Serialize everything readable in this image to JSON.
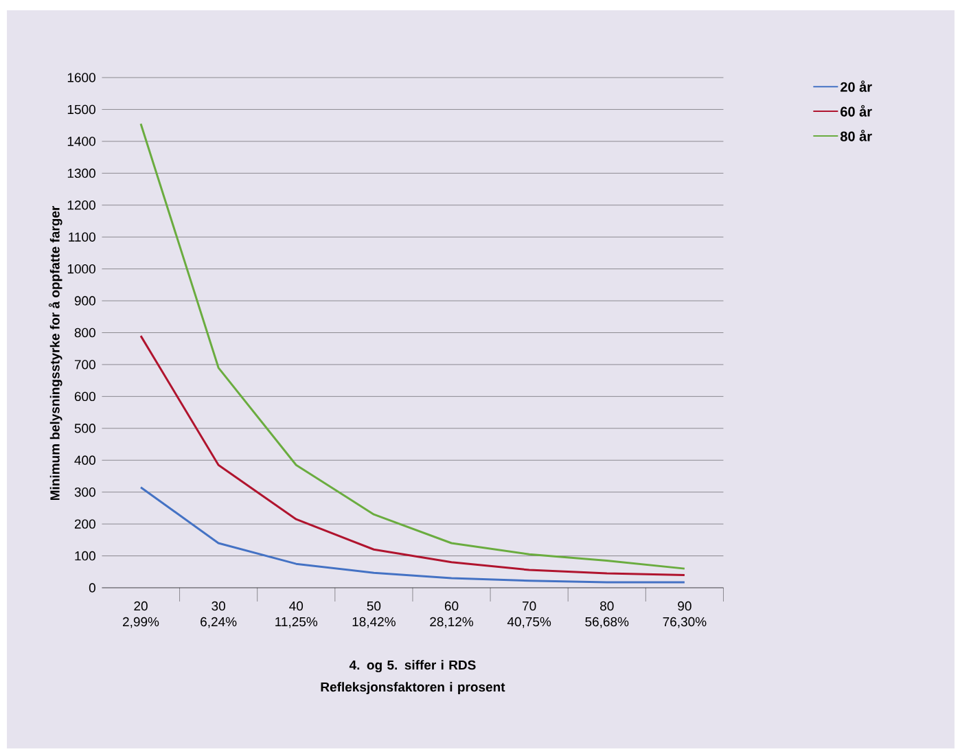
{
  "chart_data": {
    "type": "line",
    "categories": [
      "20 2,99%",
      "30 6,24%",
      "40 11,25%",
      "50 18,42%",
      "60 28,12%",
      "70 40,75%",
      "80 56,68%",
      "90 76,30%"
    ],
    "series": [
      {
        "name": "20 år",
        "color": "#4472c4",
        "values": [
          315,
          140,
          75,
          47,
          30,
          22,
          17,
          17
        ]
      },
      {
        "name": "60 år",
        "color": "#b0142e",
        "values": [
          790,
          385,
          215,
          120,
          80,
          56,
          45,
          40
        ]
      },
      {
        "name": "80 år",
        "color": "#6aac3f",
        "values": [
          1455,
          690,
          385,
          230,
          140,
          105,
          85,
          60
        ]
      }
    ],
    "xlabel": "4. og 5. siffer i RDS Refleksjonsfaktoren i prosent",
    "ylabel": "Minimum belysningsstyrke for å oppfatte farger",
    "ylim": [
      0,
      1600
    ],
    "yticks": [
      0,
      100,
      200,
      300,
      400,
      500,
      600,
      700,
      800,
      900,
      1000,
      1100,
      1200,
      1300,
      1400,
      1500,
      1600
    ],
    "grid": "y",
    "legend": "right",
    "marker": "none",
    "line_style": "solid"
  }
}
